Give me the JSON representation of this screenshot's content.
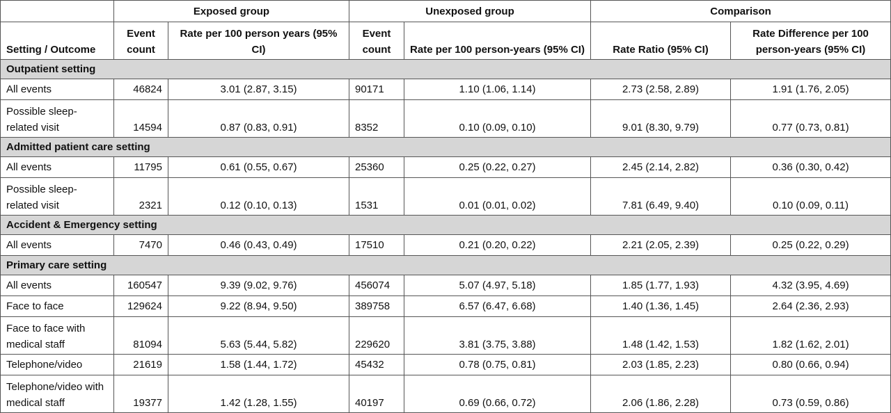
{
  "header": {
    "exposed_group": "Exposed group",
    "unexposed_group": "Unexposed group",
    "comparison": "Comparison"
  },
  "columns": {
    "setting_outcome": "Setting / Outcome",
    "event_count_exposed": "Event count",
    "rate_exposed": "Rate per 100 person years (95% CI)",
    "event_count_unexposed": "Event count",
    "rate_unexposed": "Rate per 100 person-years (95% CI)",
    "rate_ratio": "Rate Ratio (95% CI)",
    "rate_difference": "Rate Difference per 100 person-years (95% CI)"
  },
  "sections": [
    {
      "title": "Outpatient setting",
      "rows": [
        {
          "outcome": "All events",
          "exp_count": "46824",
          "exp_rate": "3.01 (2.87, 3.15)",
          "unexp_count": "90171",
          "unexp_rate": "1.10 (1.06, 1.14)",
          "rr": "2.73 (2.58, 2.89)",
          "rd": "1.91 (1.76, 2.05)"
        },
        {
          "outcome": "Possible sleep-related visit",
          "exp_count": "14594",
          "exp_rate": "0.87 (0.83, 0.91)",
          "unexp_count": "8352",
          "unexp_rate": "0.10 (0.09, 0.10)",
          "rr": "9.01 (8.30, 9.79)",
          "rd": "0.77 (0.73, 0.81)"
        }
      ]
    },
    {
      "title": "Admitted patient care setting",
      "rows": [
        {
          "outcome": "All events",
          "exp_count": "11795",
          "exp_rate": "0.61 (0.55, 0.67)",
          "unexp_count": "25360",
          "unexp_rate": "0.25 (0.22, 0.27)",
          "rr": "2.45 (2.14, 2.82)",
          "rd": "0.36 (0.30, 0.42)"
        },
        {
          "outcome": "Possible sleep-related visit",
          "exp_count": "2321",
          "exp_rate": "0.12 (0.10, 0.13)",
          "unexp_count": "1531",
          "unexp_rate": "0.01 (0.01, 0.02)",
          "rr": "7.81 (6.49, 9.40)",
          "rd": "0.10 (0.09, 0.11)"
        }
      ]
    },
    {
      "title": "Accident & Emergency setting",
      "rows": [
        {
          "outcome": "All events",
          "exp_count": "7470",
          "exp_rate": "0.46 (0.43, 0.49)",
          "unexp_count": "17510",
          "unexp_rate": "0.21 (0.20, 0.22)",
          "rr": "2.21 (2.05, 2.39)",
          "rd": "0.25 (0.22, 0.29)"
        }
      ]
    },
    {
      "title": "Primary care setting",
      "rows": [
        {
          "outcome": "All events",
          "exp_count": "160547",
          "exp_rate": "9.39 (9.02, 9.76)",
          "unexp_count": "456074",
          "unexp_rate": "5.07 (4.97, 5.18)",
          "rr": "1.85 (1.77, 1.93)",
          "rd": "4.32 (3.95, 4.69)"
        },
        {
          "outcome": "Face to face",
          "exp_count": "129624",
          "exp_rate": "9.22 (8.94, 9.50)",
          "unexp_count": "389758",
          "unexp_rate": "6.57 (6.47, 6.68)",
          "rr": "1.40 (1.36, 1.45)",
          "rd": "2.64 (2.36, 2.93)"
        },
        {
          "outcome": "Face to face with medical staff",
          "exp_count": "81094",
          "exp_rate": "5.63 (5.44, 5.82)",
          "unexp_count": "229620",
          "unexp_rate": "3.81 (3.75, 3.88)",
          "rr": "1.48 (1.42, 1.53)",
          "rd": "1.82 (1.62, 2.01)"
        },
        {
          "outcome": "Telephone/video",
          "exp_count": "21619",
          "exp_rate": "1.58 (1.44, 1.72)",
          "unexp_count": "45432",
          "unexp_rate": "0.78 (0.75, 0.81)",
          "rr": "2.03 (1.85, 2.23)",
          "rd": "0.80 (0.66, 0.94)"
        },
        {
          "outcome": "Telephone/video with medical staff",
          "exp_count": "19377",
          "exp_rate": "1.42 (1.28, 1.55)",
          "unexp_count": "40197",
          "unexp_rate": "0.69 (0.66, 0.72)",
          "rr": "2.06 (1.86, 2.28)",
          "rd": "0.73 (0.59, 0.86)"
        }
      ]
    }
  ]
}
